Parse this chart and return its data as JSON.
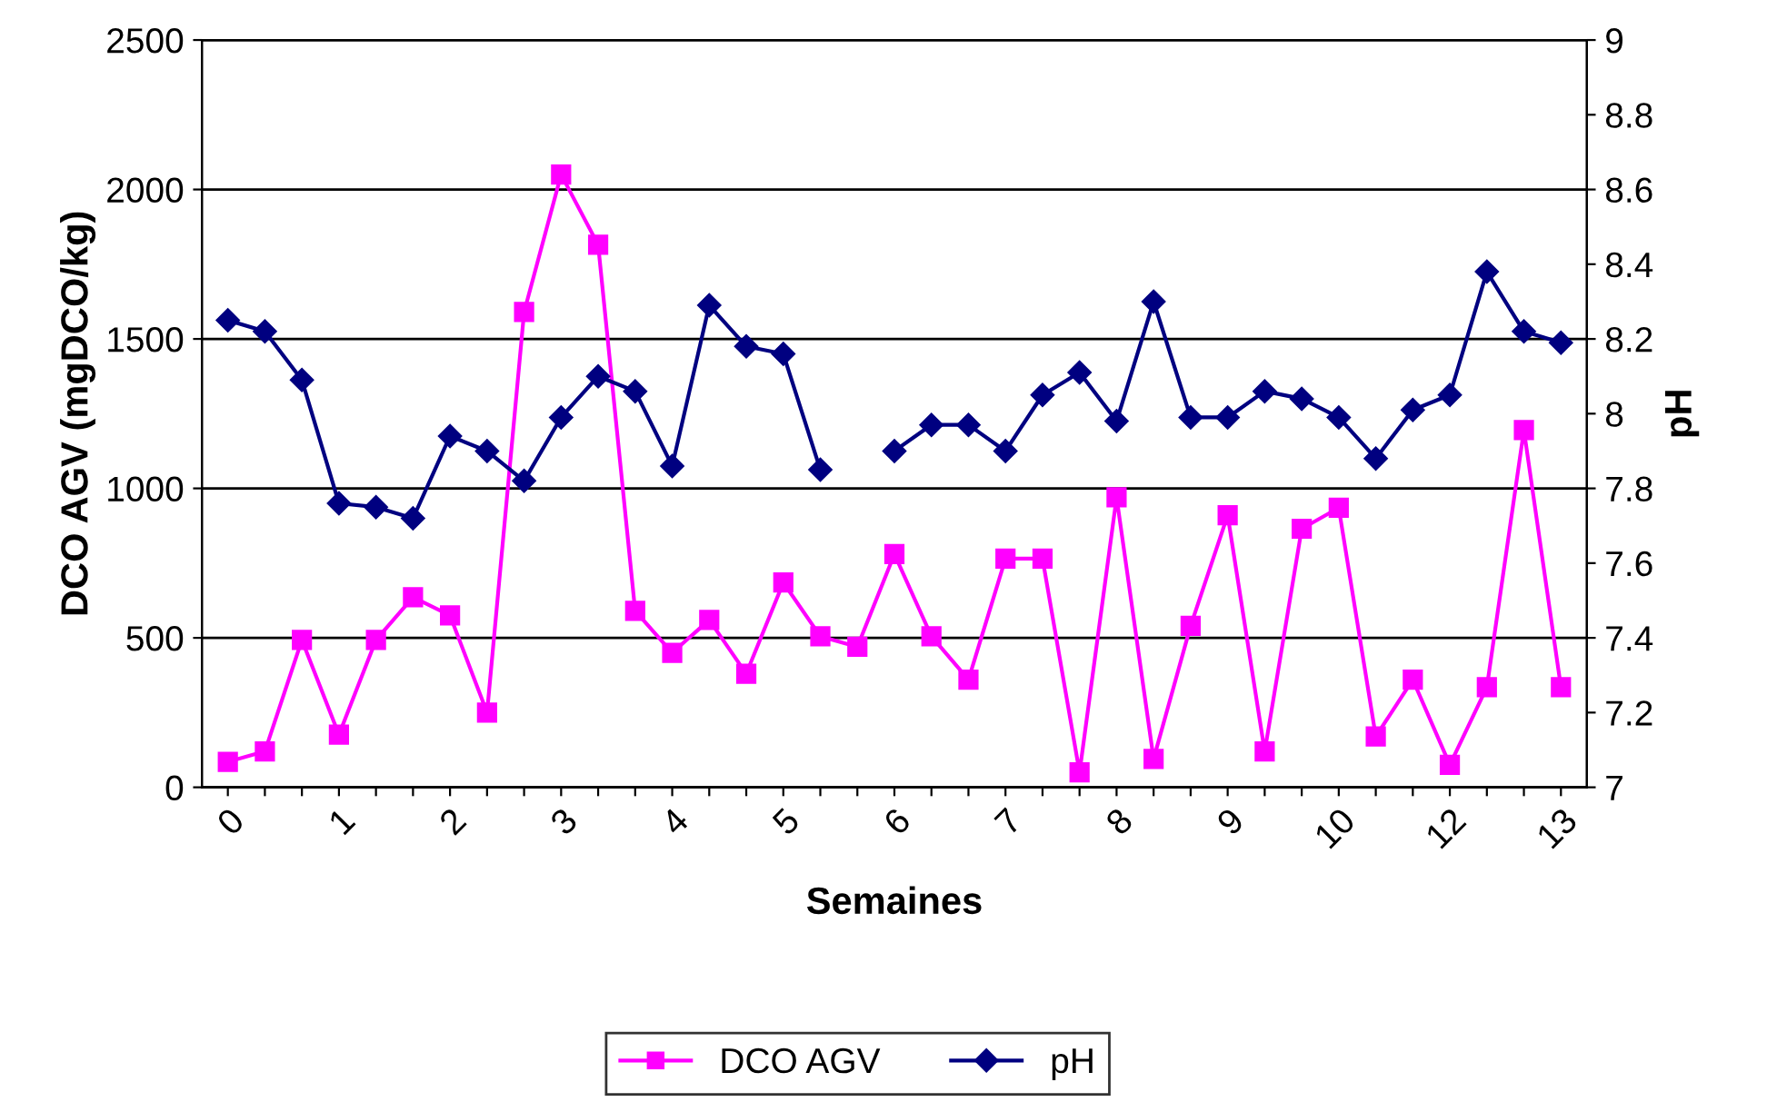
{
  "chart_data": {
    "type": "line",
    "xlabel": "Semaines",
    "ylabel": "DCO AGV (mgDCO/kg)",
    "y2label": "pH",
    "categories": [
      "0",
      null,
      null,
      "1",
      null,
      null,
      "2",
      null,
      null,
      "3",
      null,
      null,
      "4",
      null,
      null,
      "5",
      null,
      null,
      "6",
      null,
      null,
      "7",
      null,
      null,
      "8",
      null,
      null,
      "9",
      null,
      null,
      "10",
      null,
      null,
      "12",
      null,
      null,
      "13"
    ],
    "series": [
      {
        "name": "DCO AGV",
        "color": "#ff00ff",
        "marker": "square",
        "values": [
          85,
          120,
          493,
          176,
          493,
          636,
          575,
          250,
          1590,
          2050,
          1815,
          590,
          450,
          560,
          380,
          685,
          505,
          470,
          780,
          505,
          360,
          765,
          765,
          50,
          970,
          95,
          540,
          910,
          120,
          865,
          935,
          170,
          360,
          75,
          335,
          1195,
          335
        ]
      },
      {
        "name": "pH",
        "color": "#000080",
        "marker": "diamond",
        "axis": "y2",
        "values": [
          8.25,
          8.22,
          8.09,
          7.76,
          7.75,
          7.72,
          7.94,
          7.9,
          7.82,
          7.99,
          8.1,
          8.06,
          7.86,
          8.29,
          8.18,
          8.16,
          7.85,
          null,
          7.9,
          7.97,
          7.97,
          7.9,
          8.05,
          8.11,
          7.98,
          8.3,
          7.99,
          7.99,
          8.06,
          8.04,
          7.99,
          7.88,
          8.01,
          8.05,
          8.38,
          8.22,
          8.19
        ]
      }
    ],
    "ylim": [
      0,
      2500
    ],
    "yticks": [
      0,
      500,
      1000,
      1500,
      2000,
      2500
    ],
    "y2lim": [
      7,
      9
    ],
    "y2ticks": [
      7,
      7.2,
      7.4,
      7.6,
      7.8,
      8,
      8.2,
      8.4,
      8.6,
      8.8,
      9
    ],
    "grid": "y",
    "legend": "bottom",
    "line_style": "solid"
  }
}
